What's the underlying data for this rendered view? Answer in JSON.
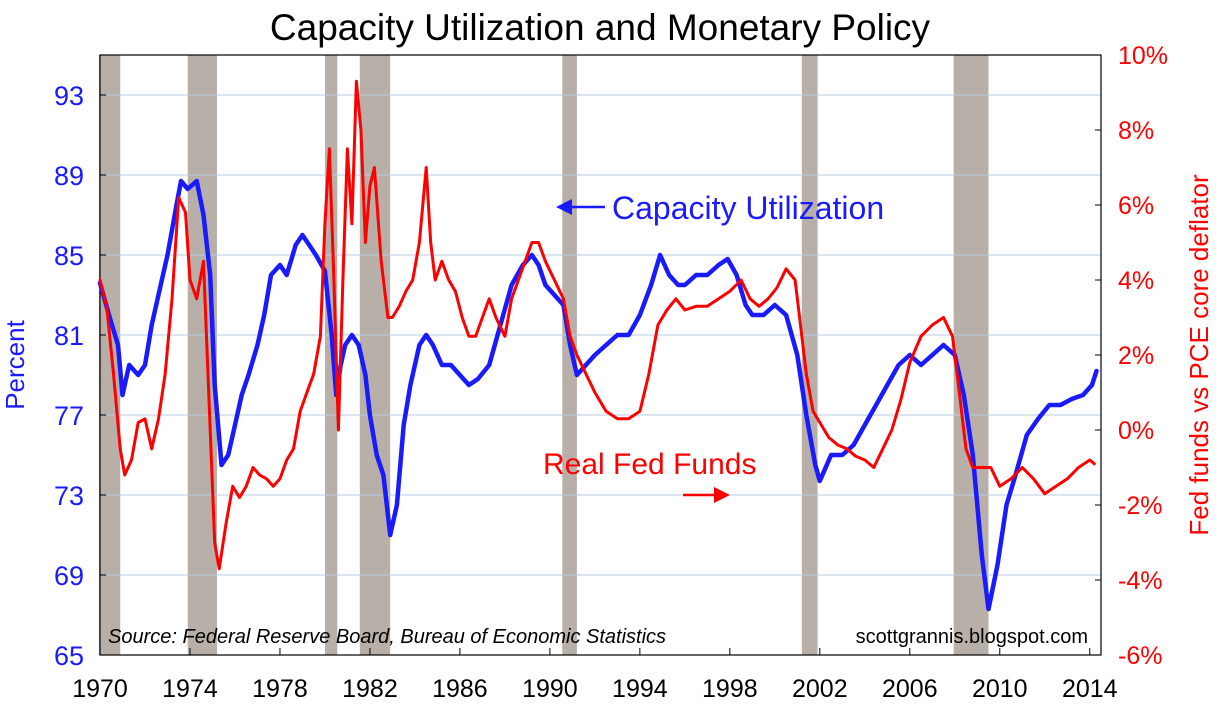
{
  "chart_data": {
    "type": "line",
    "title": "Capacity Utilization and Monetary Policy",
    "left_axis": {
      "label": "Percent",
      "range": [
        65,
        95
      ],
      "ticks": [
        65,
        69,
        73,
        77,
        81,
        85,
        89,
        93
      ],
      "color": "#1a1aff"
    },
    "right_axis": {
      "label": "Fed funds vs PCE core deflator",
      "range": [
        -6,
        10
      ],
      "ticks": [
        "-6%",
        "-4%",
        "-2%",
        "0%",
        "2%",
        "4%",
        "6%",
        "8%",
        "10%"
      ],
      "color": "#ff0000"
    },
    "x_axis": {
      "range": [
        1970,
        2014.5
      ],
      "ticks": [
        "1970",
        "1974",
        "1978",
        "1982",
        "1986",
        "1990",
        "1994",
        "1998",
        "2002",
        "2006",
        "2010",
        "2014"
      ]
    },
    "grid": "horizontal",
    "recessions": [
      [
        1969.95,
        1970.9
      ],
      [
        1973.9,
        1975.2
      ],
      [
        1980.0,
        1980.55
      ],
      [
        1981.55,
        1982.9
      ],
      [
        1990.55,
        1991.2
      ],
      [
        2001.2,
        2001.9
      ],
      [
        2007.95,
        2009.5
      ]
    ],
    "series": [
      {
        "name": "Capacity Utilization",
        "axis": "left",
        "color": "#1a1aff",
        "points": [
          [
            1970.0,
            83.6
          ],
          [
            1970.4,
            82.0
          ],
          [
            1970.8,
            80.5
          ],
          [
            1971.0,
            78.0
          ],
          [
            1971.3,
            79.5
          ],
          [
            1971.7,
            79.0
          ],
          [
            1972.0,
            79.5
          ],
          [
            1972.3,
            81.5
          ],
          [
            1972.7,
            83.5
          ],
          [
            1973.0,
            85.0
          ],
          [
            1973.4,
            87.5
          ],
          [
            1973.6,
            88.7
          ],
          [
            1973.9,
            88.3
          ],
          [
            1974.3,
            88.7
          ],
          [
            1974.6,
            87.0
          ],
          [
            1974.9,
            84.0
          ],
          [
            1975.1,
            78.5
          ],
          [
            1975.4,
            74.5
          ],
          [
            1975.7,
            75.0
          ],
          [
            1976.0,
            76.5
          ],
          [
            1976.3,
            78.0
          ],
          [
            1976.6,
            79.0
          ],
          [
            1977.0,
            80.5
          ],
          [
            1977.3,
            82.0
          ],
          [
            1977.6,
            84.0
          ],
          [
            1978.0,
            84.5
          ],
          [
            1978.3,
            84.0
          ],
          [
            1978.7,
            85.5
          ],
          [
            1979.0,
            86.0
          ],
          [
            1979.3,
            85.5
          ],
          [
            1979.6,
            85.0
          ],
          [
            1980.0,
            84.2
          ],
          [
            1980.3,
            81.0
          ],
          [
            1980.5,
            78.0
          ],
          [
            1980.7,
            79.5
          ],
          [
            1980.9,
            80.5
          ],
          [
            1981.2,
            81.0
          ],
          [
            1981.5,
            80.5
          ],
          [
            1981.8,
            79.0
          ],
          [
            1982.0,
            77.0
          ],
          [
            1982.3,
            75.0
          ],
          [
            1982.6,
            74.0
          ],
          [
            1982.9,
            71.0
          ],
          [
            1983.2,
            72.5
          ],
          [
            1983.5,
            76.5
          ],
          [
            1983.8,
            78.5
          ],
          [
            1984.2,
            80.5
          ],
          [
            1984.5,
            81.0
          ],
          [
            1984.8,
            80.5
          ],
          [
            1985.2,
            79.5
          ],
          [
            1985.6,
            79.5
          ],
          [
            1986.0,
            79.0
          ],
          [
            1986.4,
            78.5
          ],
          [
            1986.8,
            78.8
          ],
          [
            1987.3,
            79.5
          ],
          [
            1987.8,
            81.5
          ],
          [
            1988.3,
            83.5
          ],
          [
            1988.8,
            84.5
          ],
          [
            1989.2,
            85.0
          ],
          [
            1989.5,
            84.5
          ],
          [
            1989.8,
            83.5
          ],
          [
            1990.2,
            83.0
          ],
          [
            1990.6,
            82.5
          ],
          [
            1990.9,
            80.5
          ],
          [
            1991.2,
            79.0
          ],
          [
            1991.6,
            79.5
          ],
          [
            1992.0,
            80.0
          ],
          [
            1992.5,
            80.5
          ],
          [
            1993.0,
            81.0
          ],
          [
            1993.5,
            81.0
          ],
          [
            1994.0,
            82.0
          ],
          [
            1994.5,
            83.5
          ],
          [
            1994.9,
            85.0
          ],
          [
            1995.3,
            84.0
          ],
          [
            1995.7,
            83.5
          ],
          [
            1996.0,
            83.5
          ],
          [
            1996.5,
            84.0
          ],
          [
            1997.0,
            84.0
          ],
          [
            1997.5,
            84.5
          ],
          [
            1997.9,
            84.8
          ],
          [
            1998.3,
            84.0
          ],
          [
            1998.7,
            82.5
          ],
          [
            1999.0,
            82.0
          ],
          [
            1999.5,
            82.0
          ],
          [
            2000.0,
            82.5
          ],
          [
            2000.5,
            82.0
          ],
          [
            2001.0,
            80.0
          ],
          [
            2001.4,
            77.0
          ],
          [
            2001.8,
            74.5
          ],
          [
            2002.0,
            73.7
          ],
          [
            2002.5,
            75.0
          ],
          [
            2003.0,
            75.0
          ],
          [
            2003.5,
            75.5
          ],
          [
            2004.0,
            76.5
          ],
          [
            2004.5,
            77.5
          ],
          [
            2005.0,
            78.5
          ],
          [
            2005.5,
            79.5
          ],
          [
            2006.0,
            80.0
          ],
          [
            2006.5,
            79.5
          ],
          [
            2007.0,
            80.0
          ],
          [
            2007.5,
            80.5
          ],
          [
            2008.0,
            80.0
          ],
          [
            2008.4,
            78.0
          ],
          [
            2008.8,
            75.0
          ],
          [
            2009.2,
            70.0
          ],
          [
            2009.5,
            67.3
          ],
          [
            2009.9,
            69.5
          ],
          [
            2010.3,
            72.5
          ],
          [
            2010.7,
            74.0
          ],
          [
            2011.2,
            76.0
          ],
          [
            2011.7,
            76.8
          ],
          [
            2012.2,
            77.5
          ],
          [
            2012.7,
            77.5
          ],
          [
            2013.2,
            77.8
          ],
          [
            2013.7,
            78.0
          ],
          [
            2014.1,
            78.5
          ],
          [
            2014.3,
            79.2
          ]
        ]
      },
      {
        "name": "Real Fed Funds",
        "axis": "right",
        "color": "#ff0000",
        "points": [
          [
            1970.0,
            4.0
          ],
          [
            1970.3,
            3.3
          ],
          [
            1970.6,
            1.5
          ],
          [
            1970.9,
            -0.5
          ],
          [
            1971.1,
            -1.2
          ],
          [
            1971.4,
            -0.8
          ],
          [
            1971.7,
            0.2
          ],
          [
            1972.0,
            0.3
          ],
          [
            1972.3,
            -0.5
          ],
          [
            1972.6,
            0.3
          ],
          [
            1972.9,
            1.5
          ],
          [
            1973.2,
            3.5
          ],
          [
            1973.5,
            6.2
          ],
          [
            1973.8,
            5.8
          ],
          [
            1974.0,
            4.0
          ],
          [
            1974.3,
            3.5
          ],
          [
            1974.6,
            4.5
          ],
          [
            1974.9,
            0.0
          ],
          [
            1975.1,
            -3.0
          ],
          [
            1975.3,
            -3.7
          ],
          [
            1975.6,
            -2.5
          ],
          [
            1975.9,
            -1.5
          ],
          [
            1976.2,
            -1.8
          ],
          [
            1976.5,
            -1.5
          ],
          [
            1976.8,
            -1.0
          ],
          [
            1977.1,
            -1.2
          ],
          [
            1977.4,
            -1.3
          ],
          [
            1977.7,
            -1.5
          ],
          [
            1978.0,
            -1.3
          ],
          [
            1978.3,
            -0.8
          ],
          [
            1978.6,
            -0.5
          ],
          [
            1978.9,
            0.5
          ],
          [
            1979.2,
            1.0
          ],
          [
            1979.5,
            1.5
          ],
          [
            1979.8,
            2.5
          ],
          [
            1980.0,
            5.5
          ],
          [
            1980.2,
            7.5
          ],
          [
            1980.4,
            4.0
          ],
          [
            1980.6,
            0.0
          ],
          [
            1980.8,
            4.0
          ],
          [
            1981.0,
            7.5
          ],
          [
            1981.2,
            5.5
          ],
          [
            1981.4,
            9.3
          ],
          [
            1981.6,
            8.0
          ],
          [
            1981.8,
            5.0
          ],
          [
            1982.0,
            6.5
          ],
          [
            1982.2,
            7.0
          ],
          [
            1982.5,
            4.5
          ],
          [
            1982.8,
            3.0
          ],
          [
            1983.0,
            3.0
          ],
          [
            1983.3,
            3.3
          ],
          [
            1983.6,
            3.7
          ],
          [
            1983.9,
            4.0
          ],
          [
            1984.2,
            5.0
          ],
          [
            1984.5,
            7.0
          ],
          [
            1984.7,
            5.0
          ],
          [
            1984.9,
            4.0
          ],
          [
            1985.2,
            4.5
          ],
          [
            1985.5,
            4.0
          ],
          [
            1985.8,
            3.7
          ],
          [
            1986.1,
            3.0
          ],
          [
            1986.4,
            2.5
          ],
          [
            1986.7,
            2.5
          ],
          [
            1987.0,
            3.0
          ],
          [
            1987.3,
            3.5
          ],
          [
            1987.6,
            3.0
          ],
          [
            1988.0,
            2.5
          ],
          [
            1988.3,
            3.5
          ],
          [
            1988.6,
            4.0
          ],
          [
            1988.9,
            4.5
          ],
          [
            1989.2,
            5.0
          ],
          [
            1989.5,
            5.0
          ],
          [
            1989.8,
            4.5
          ],
          [
            1990.2,
            4.0
          ],
          [
            1990.6,
            3.5
          ],
          [
            1990.9,
            2.5
          ],
          [
            1991.2,
            2.0
          ],
          [
            1991.6,
            1.5
          ],
          [
            1992.0,
            1.0
          ],
          [
            1992.5,
            0.5
          ],
          [
            1993.0,
            0.3
          ],
          [
            1993.5,
            0.3
          ],
          [
            1994.0,
            0.5
          ],
          [
            1994.4,
            1.5
          ],
          [
            1994.8,
            2.8
          ],
          [
            1995.2,
            3.2
          ],
          [
            1995.6,
            3.5
          ],
          [
            1996.0,
            3.2
          ],
          [
            1996.5,
            3.3
          ],
          [
            1997.0,
            3.3
          ],
          [
            1997.5,
            3.5
          ],
          [
            1998.0,
            3.7
          ],
          [
            1998.5,
            4.0
          ],
          [
            1998.9,
            3.5
          ],
          [
            1999.3,
            3.3
          ],
          [
            1999.7,
            3.5
          ],
          [
            2000.1,
            3.8
          ],
          [
            2000.5,
            4.3
          ],
          [
            2000.9,
            4.0
          ],
          [
            2001.1,
            3.0
          ],
          [
            2001.4,
            1.5
          ],
          [
            2001.7,
            0.5
          ],
          [
            2002.0,
            0.2
          ],
          [
            2002.4,
            -0.2
          ],
          [
            2002.8,
            -0.4
          ],
          [
            2003.2,
            -0.5
          ],
          [
            2003.6,
            -0.7
          ],
          [
            2004.0,
            -0.8
          ],
          [
            2004.4,
            -1.0
          ],
          [
            2004.8,
            -0.5
          ],
          [
            2005.2,
            0.0
          ],
          [
            2005.6,
            0.8
          ],
          [
            2006.0,
            1.8
          ],
          [
            2006.5,
            2.5
          ],
          [
            2007.0,
            2.8
          ],
          [
            2007.5,
            3.0
          ],
          [
            2007.9,
            2.5
          ],
          [
            2008.2,
            1.0
          ],
          [
            2008.5,
            -0.5
          ],
          [
            2008.8,
            -1.0
          ],
          [
            2009.2,
            -1.0
          ],
          [
            2009.6,
            -1.0
          ],
          [
            2010.0,
            -1.5
          ],
          [
            2010.5,
            -1.3
          ],
          [
            2011.0,
            -1.0
          ],
          [
            2011.5,
            -1.3
          ],
          [
            2012.0,
            -1.7
          ],
          [
            2012.5,
            -1.5
          ],
          [
            2013.0,
            -1.3
          ],
          [
            2013.5,
            -1.0
          ],
          [
            2014.0,
            -0.8
          ],
          [
            2014.2,
            -0.9
          ]
        ]
      }
    ],
    "annotations": {
      "cap_util": "Capacity Utilization",
      "real_ff": "Real Fed Funds",
      "source": "Source:  Federal Reserve Board, Bureau of Economic Statistics",
      "blog": "scottgrannis.blogspot.com"
    }
  }
}
